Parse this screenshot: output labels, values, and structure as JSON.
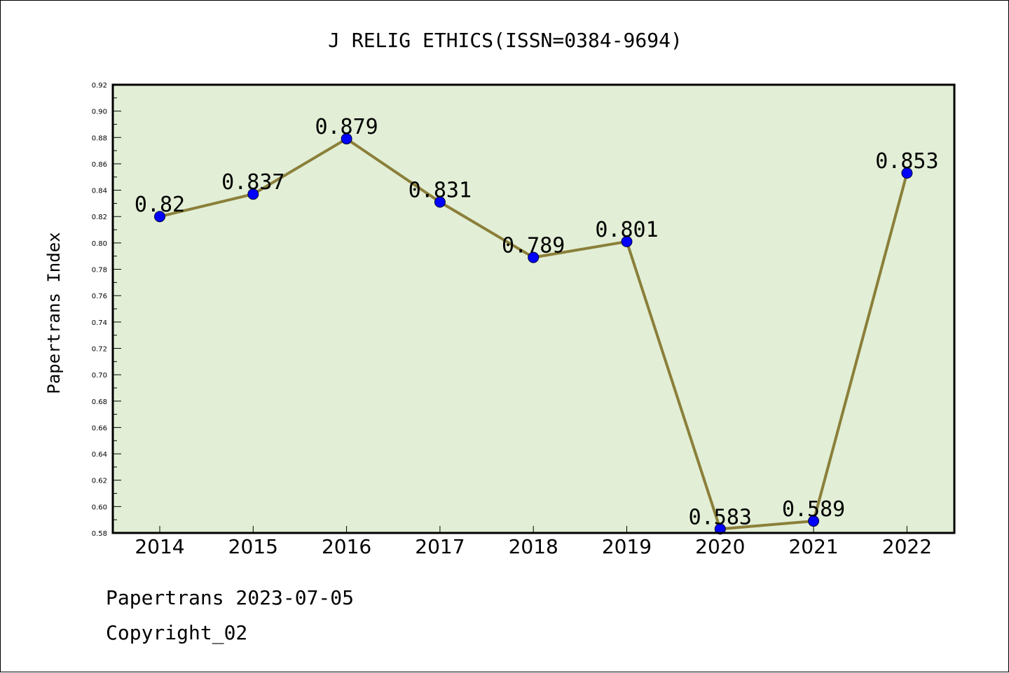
{
  "chart_data": {
    "type": "line",
    "title": "J RELIG ETHICS(ISSN=0384-9694)",
    "xlabel": "",
    "ylabel": "Papertrans Index",
    "categories": [
      "2014",
      "2015",
      "2016",
      "2017",
      "2018",
      "2019",
      "2020",
      "2021",
      "2022"
    ],
    "series": [
      {
        "values": [
          0.82,
          0.837,
          0.879,
          0.831,
          0.789,
          0.801,
          0.583,
          0.589,
          0.853
        ],
        "data_labels": [
          "0.82",
          "0.837",
          "0.879",
          "0.831",
          "0.789",
          "0.801",
          "0.583",
          "0.589",
          "0.853"
        ]
      }
    ],
    "ylim": [
      0.58,
      0.92
    ],
    "yticks": [
      "0.58",
      "0.60",
      "0.62",
      "0.64",
      "0.66",
      "0.68",
      "0.70",
      "0.72",
      "0.74",
      "0.76",
      "0.78",
      "0.80",
      "0.82",
      "0.84",
      "0.86",
      "0.88",
      "0.90",
      "0.92"
    ],
    "grid": false,
    "legend": "none"
  },
  "colors": {
    "plot_background": "#e2efd6",
    "line": "#8b7f3a",
    "marker": "#0000ff"
  },
  "footer": {
    "date_line": "Papertrans 2023-07-05",
    "copyright_line": "Copyright_02"
  }
}
